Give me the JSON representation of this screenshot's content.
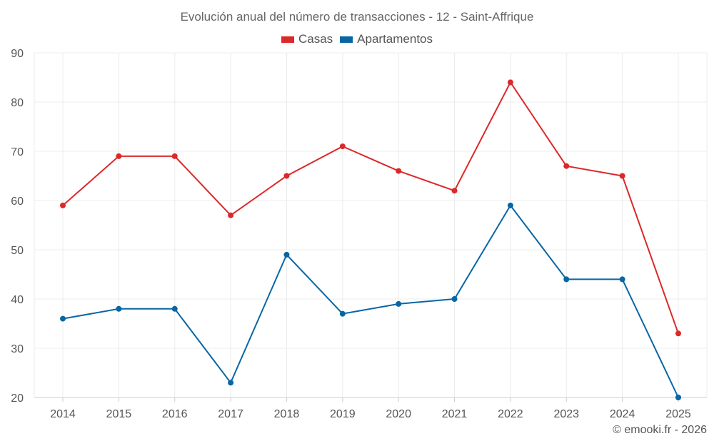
{
  "chart_data": {
    "type": "line",
    "title": "Evolución anual del número de transacciones - 12 - Saint-Affrique",
    "xlabel": "",
    "ylabel": "",
    "x": [
      "2014",
      "2015",
      "2016",
      "2017",
      "2018",
      "2019",
      "2020",
      "2021",
      "2022",
      "2023",
      "2024",
      "2025"
    ],
    "ylim": [
      20,
      90
    ],
    "yticks": [
      20,
      30,
      40,
      50,
      60,
      70,
      80,
      90
    ],
    "grid": true,
    "legend_position": "top-center",
    "series": [
      {
        "name": "Casas",
        "color": "#dc2828",
        "values": [
          59,
          69,
          69,
          57,
          65,
          71,
          66,
          62,
          84,
          67,
          65,
          33
        ]
      },
      {
        "name": "Apartamentos",
        "color": "#0866a3",
        "values": [
          36,
          38,
          38,
          23,
          49,
          37,
          39,
          40,
          59,
          44,
          44,
          20
        ]
      }
    ]
  },
  "credit": "© emooki.fr - 2026"
}
